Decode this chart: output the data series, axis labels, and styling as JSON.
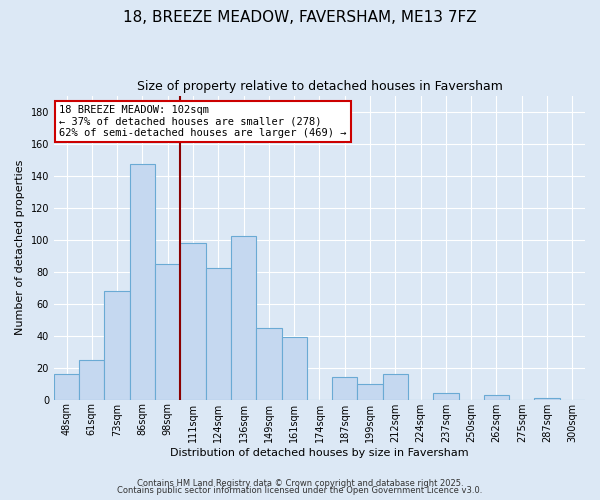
{
  "title": "18, BREEZE MEADOW, FAVERSHAM, ME13 7FZ",
  "subtitle": "Size of property relative to detached houses in Faversham",
  "xlabel": "Distribution of detached houses by size in Faversham",
  "ylabel": "Number of detached properties",
  "bar_labels": [
    "48sqm",
    "61sqm",
    "73sqm",
    "86sqm",
    "98sqm",
    "111sqm",
    "124sqm",
    "136sqm",
    "149sqm",
    "161sqm",
    "174sqm",
    "187sqm",
    "199sqm",
    "212sqm",
    "224sqm",
    "237sqm",
    "250sqm",
    "262sqm",
    "275sqm",
    "287sqm",
    "300sqm"
  ],
  "bar_values": [
    16,
    25,
    68,
    147,
    85,
    98,
    82,
    102,
    45,
    39,
    0,
    14,
    10,
    16,
    0,
    4,
    0,
    3,
    0,
    1,
    0
  ],
  "bar_color": "#c5d8f0",
  "bar_edgecolor": "#6aaad4",
  "ylim": [
    0,
    190
  ],
  "yticks": [
    0,
    20,
    40,
    60,
    80,
    100,
    120,
    140,
    160,
    180
  ],
  "vline_x": 4.5,
  "vline_color": "#8b0000",
  "annotation_title": "18 BREEZE MEADOW: 102sqm",
  "annotation_line1": "← 37% of detached houses are smaller (278)",
  "annotation_line2": "62% of semi-detached houses are larger (469) →",
  "annotation_box_facecolor": "#ffffff",
  "annotation_box_edgecolor": "#cc0000",
  "footer1": "Contains HM Land Registry data © Crown copyright and database right 2025.",
  "footer2": "Contains public sector information licensed under the Open Government Licence v3.0.",
  "fig_facecolor": "#dce8f5",
  "plot_facecolor": "#dce8f5",
  "title_fontsize": 11,
  "subtitle_fontsize": 9,
  "axis_label_fontsize": 8,
  "tick_fontsize": 7,
  "footer_fontsize": 6
}
